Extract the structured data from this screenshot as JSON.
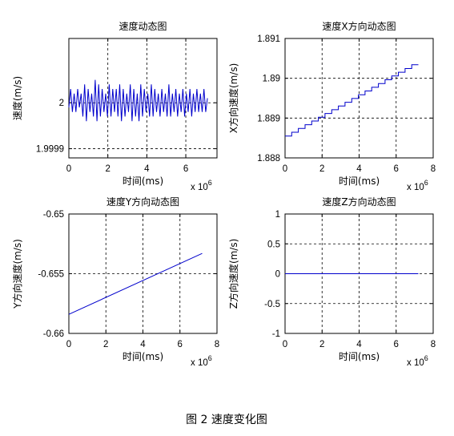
{
  "figure_caption": "图 2  速度变化图",
  "chart_data": [
    {
      "type": "line",
      "title": "速度动态图",
      "xlabel": "时间(ms)",
      "ylabel": "速度(m/s)",
      "x_exponent_base": "x 10",
      "x_exponent_power": "6",
      "xlim": [
        0,
        7.6
      ],
      "ylim": [
        1.99988,
        2.00014
      ],
      "x_ticks": [
        "0",
        "2",
        "4",
        "6"
      ],
      "y_ticks": [
        "1.9999",
        "2"
      ],
      "y_tick_values": [
        1.9999,
        2.0
      ],
      "grid": true,
      "series": [
        {
          "color": "#0000cc",
          "x": [
            0.0,
            0.09,
            0.18,
            0.27,
            0.36,
            0.45,
            0.54,
            0.63,
            0.72,
            0.81,
            0.9,
            0.99,
            1.08,
            1.17,
            1.26,
            1.35,
            1.44,
            1.53,
            1.62,
            1.71,
            1.8,
            1.89,
            1.98,
            2.07,
            2.16,
            2.25,
            2.34,
            2.43,
            2.52,
            2.61,
            2.7,
            2.79,
            2.88,
            2.97,
            3.06,
            3.15,
            3.24,
            3.33,
            3.42,
            3.51,
            3.6,
            3.69,
            3.78,
            3.87,
            3.96,
            4.05,
            4.14,
            4.23,
            4.32,
            4.41,
            4.5,
            4.59,
            4.68,
            4.77,
            4.86,
            4.95,
            5.04,
            5.13,
            5.22,
            5.31,
            5.4,
            5.49,
            5.58,
            5.67,
            5.76,
            5.85,
            5.94,
            6.03,
            6.12,
            6.21,
            6.3,
            6.39,
            6.48,
            6.57,
            6.66,
            6.75,
            6.84,
            6.93,
            7.02,
            7.11
          ],
          "y": [
            1.99999,
            2.00003,
            1.99998,
            2.00002,
            1.99998,
            2.00003,
            1.99999,
            2.00002,
            1.99997,
            2.00004,
            1.99996,
            2.00003,
            1.99998,
            2.00002,
            1.99997,
            2.00005,
            1.99996,
            2.00004,
            1.99997,
            2.00003,
            1.99998,
            2.00002,
            1.99997,
            2.00004,
            1.99997,
            2.00003,
            1.99998,
            2.00003,
            1.99997,
            2.00004,
            1.99996,
            2.00003,
            1.99997,
            2.00002,
            1.99998,
            2.00004,
            1.99996,
            2.00003,
            1.99997,
            2.00002,
            1.99996,
            2.00004,
            1.99997,
            2.00003,
            1.99998,
            2.00002,
            1.99997,
            2.00004,
            1.99997,
            2.00003,
            1.99998,
            2.00002,
            1.99997,
            2.00003,
            1.99998,
            2.00002,
            1.99997,
            2.00004,
            1.99997,
            2.00002,
            1.99998,
            2.00003,
            1.99997,
            2.00002,
            1.99998,
            2.00003,
            1.99997,
            2.00002,
            1.99998,
            2.00003,
            1.99997,
            2.00002,
            1.99998,
            2.00003,
            1.99998,
            2.00002,
            1.99998,
            2.00003,
            1.99998,
            2.00001
          ]
        }
      ]
    },
    {
      "type": "line",
      "title": "速度X方向动态图",
      "xlabel": "时间(ms)",
      "ylabel": "X方向速度(m/s)",
      "x_exponent_base": "x 10",
      "x_exponent_power": "6",
      "xlim": [
        0,
        8
      ],
      "ylim": [
        1.888,
        1.891
      ],
      "x_ticks": [
        "0",
        "2",
        "4",
        "6",
        "8"
      ],
      "y_ticks": [
        "1.888",
        "1.889",
        "1.89",
        "1.891"
      ],
      "y_tick_values": [
        1.888,
        1.889,
        1.89,
        1.891
      ],
      "grid": true,
      "series": [
        {
          "color": "#0000cc",
          "x": [
            0,
            7.2
          ],
          "y": [
            1.88855,
            1.89034
          ],
          "step_count": 20
        }
      ]
    },
    {
      "type": "line",
      "title": "速度Y方向动态图",
      "xlabel": "时间(ms)",
      "ylabel": "Y方向速度(m/s)",
      "x_exponent_base": "x 10",
      "x_exponent_power": "6",
      "xlim": [
        0,
        8
      ],
      "ylim": [
        -0.66,
        -0.65
      ],
      "x_ticks": [
        "0",
        "2",
        "4",
        "6",
        "8"
      ],
      "y_ticks": [
        "-0.65",
        "-0.655",
        "-0.66"
      ],
      "y_tick_values": [
        -0.65,
        -0.655,
        -0.66
      ],
      "grid": true,
      "series": [
        {
          "color": "#0000cc",
          "x": [
            0,
            7.2
          ],
          "y": [
            -0.6584,
            -0.6533
          ]
        }
      ]
    },
    {
      "type": "line",
      "title": "速度Z方向动态图",
      "xlabel": "时间(ms)",
      "ylabel": "Z方向速度(m/s)",
      "x_exponent_base": "x 10",
      "x_exponent_power": "6",
      "xlim": [
        0,
        8
      ],
      "ylim": [
        -1,
        1
      ],
      "x_ticks": [
        "0",
        "2",
        "4",
        "6",
        "8"
      ],
      "y_ticks": [
        "1",
        "0.5",
        "0",
        "-0.5",
        "-1"
      ],
      "y_tick_values": [
        1,
        0.5,
        0,
        -0.5,
        -1
      ],
      "grid": true,
      "series": [
        {
          "color": "#0000cc",
          "x": [
            0,
            7.2
          ],
          "y": [
            0,
            0
          ]
        }
      ]
    }
  ]
}
